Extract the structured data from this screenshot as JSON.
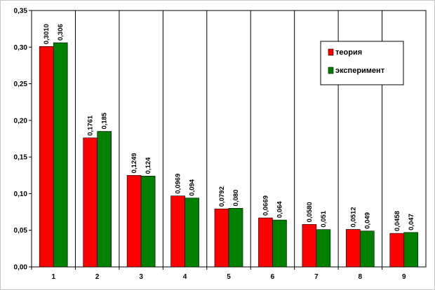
{
  "chart_data": {
    "type": "bar",
    "categories": [
      "1",
      "2",
      "3",
      "4",
      "5",
      "6",
      "7",
      "8",
      "9"
    ],
    "series": [
      {
        "name": "теория",
        "color": "#ff0000",
        "values": [
          0.301,
          0.1761,
          0.1249,
          0.0969,
          0.0792,
          0.0669,
          0.058,
          0.0512,
          0.0458
        ],
        "labels": [
          "0,3010",
          "0,1761",
          "0,1249",
          "0,0969",
          "0,0792",
          "0,0669",
          "0,0580",
          "0,0512",
          "0,0458"
        ]
      },
      {
        "name": "эксперимент",
        "color": "#008000",
        "values": [
          0.306,
          0.185,
          0.124,
          0.094,
          0.08,
          0.064,
          0.051,
          0.049,
          0.047
        ],
        "labels": [
          "0,306",
          "0,185",
          "0,124",
          "0,094",
          "0,080",
          "0,064",
          "0,051",
          "0,049",
          "0,047"
        ]
      }
    ],
    "ylim": [
      0,
      0.35
    ],
    "yticks": [
      0,
      0.05,
      0.1,
      0.15,
      0.2,
      0.25,
      0.3,
      0.35
    ],
    "ytick_labels": [
      "0,00",
      "0,05",
      "0,10",
      "0,15",
      "0,20",
      "0,25",
      "0,30",
      "0,35"
    ],
    "grid": "vertical separators between categories",
    "legend_position": "top-right",
    "title": "",
    "xlabel": "",
    "ylabel": ""
  }
}
